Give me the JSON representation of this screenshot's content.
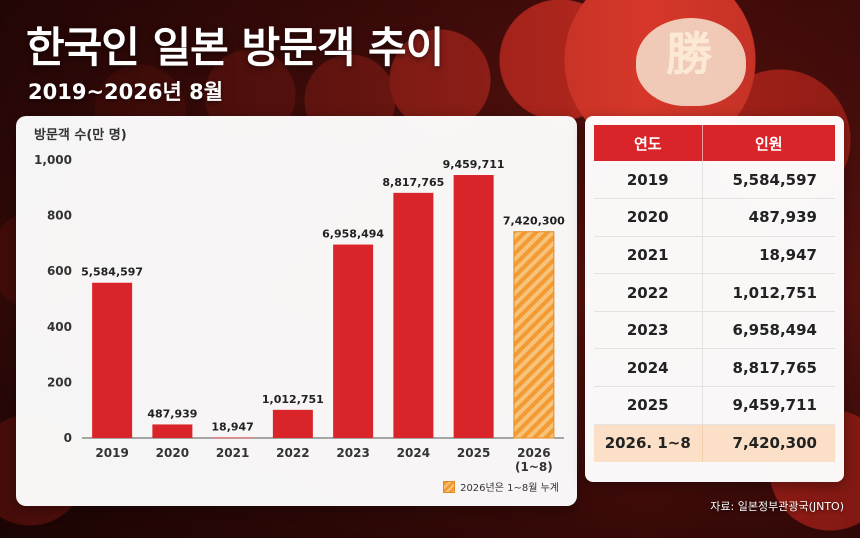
{
  "header": {
    "title": "한국인 일본 방문객 추이",
    "subtitle": "2019~2026년 8월"
  },
  "background": {
    "daruma_character": "勝"
  },
  "colors": {
    "bar": "#d9252a",
    "bar_partial": "#f39a33",
    "table_header": "#d9252a",
    "highlight_row": "#fbe0c7"
  },
  "chart_data": {
    "type": "bar",
    "ylabel": "방문객 수(만 명)",
    "ylim": [
      0,
      1000
    ],
    "yticks": [
      "0",
      "200",
      "400",
      "600",
      "800",
      "1,000"
    ],
    "ytick_values": [
      0,
      200,
      400,
      600,
      800,
      1000
    ],
    "categories": [
      "2019",
      "2020",
      "2021",
      "2022",
      "2023",
      "2024",
      "2025",
      "2026\n(1~8)"
    ],
    "category_lines": [
      [
        "2019"
      ],
      [
        "2020"
      ],
      [
        "2021"
      ],
      [
        "2022"
      ],
      [
        "2023"
      ],
      [
        "2024"
      ],
      [
        "2025"
      ],
      [
        "2026",
        "(1~8)"
      ]
    ],
    "values": [
      558.4597,
      48.7939,
      1.8947,
      101.2751,
      695.8494,
      881.7765,
      945.9711,
      742.03
    ],
    "data_labels": [
      "5,584,597",
      "487,939",
      "18,947",
      "1,012,751",
      "6,958,494",
      "8,817,765",
      "9,459,711",
      "7,420,300"
    ],
    "partial_flags": [
      false,
      false,
      false,
      false,
      false,
      false,
      false,
      true
    ],
    "legend": "2026년은 1~8월 누계",
    "grid": false
  },
  "table": {
    "headers": [
      "연도",
      "인원"
    ],
    "rows": [
      {
        "year": "2019",
        "count": "5,584,597"
      },
      {
        "year": "2020",
        "count": "487,939"
      },
      {
        "year": "2021",
        "count": "18,947"
      },
      {
        "year": "2022",
        "count": "1,012,751"
      },
      {
        "year": "2023",
        "count": "6,958,494"
      },
      {
        "year": "2024",
        "count": "8,817,765"
      },
      {
        "year": "2025",
        "count": "9,459,711"
      },
      {
        "year": "2026. 1~8",
        "count": "7,420,300"
      }
    ]
  },
  "source": "자료: 일본정부관광국(JNTO)"
}
